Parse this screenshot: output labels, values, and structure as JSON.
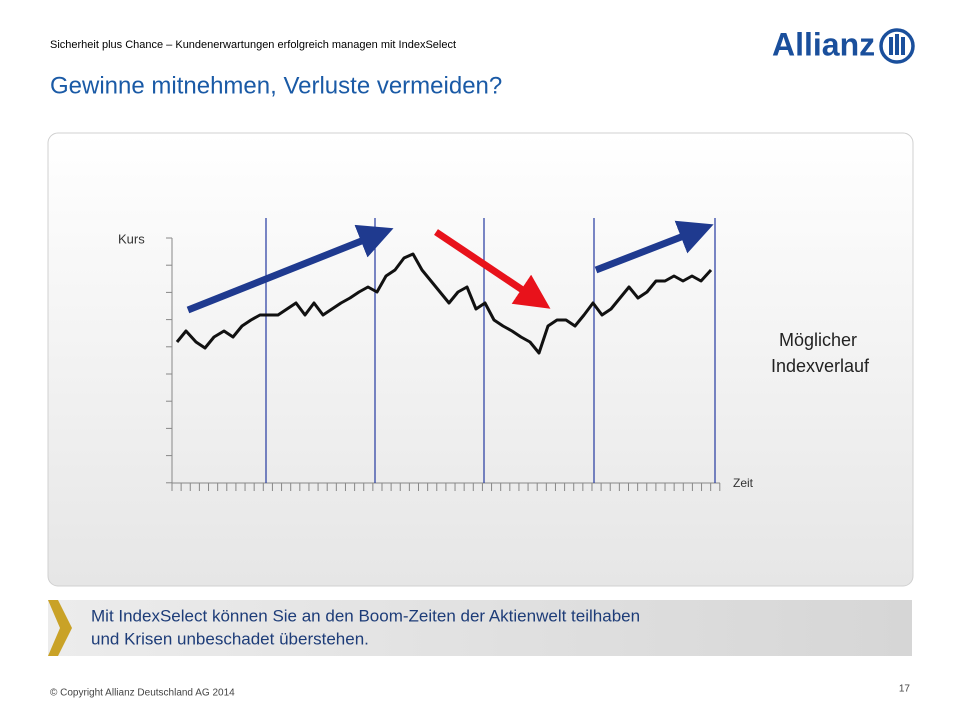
{
  "header": {
    "subtitle": "Sicherheit plus Chance – Kundenerwartungen  erfolgreich managen mit IndexSelect",
    "title": "Gewinne mitnehmen, Verluste vermeiden?",
    "logo": "Allianz"
  },
  "diagram": {
    "y_label": "Kurs",
    "x_label": "Zeit",
    "caption_lines": [
      "Möglicher",
      "Indexverlauf"
    ]
  },
  "banner": {
    "lines": [
      "Mit IndexSelect können Sie an den Boom-Zeiten der Aktienwelt teilhaben",
      "und Krisen unbeschadet überstehen."
    ]
  },
  "footer": {
    "copyright": "© Copyright Allianz Deutschland AG 2014",
    "page": "17"
  }
}
